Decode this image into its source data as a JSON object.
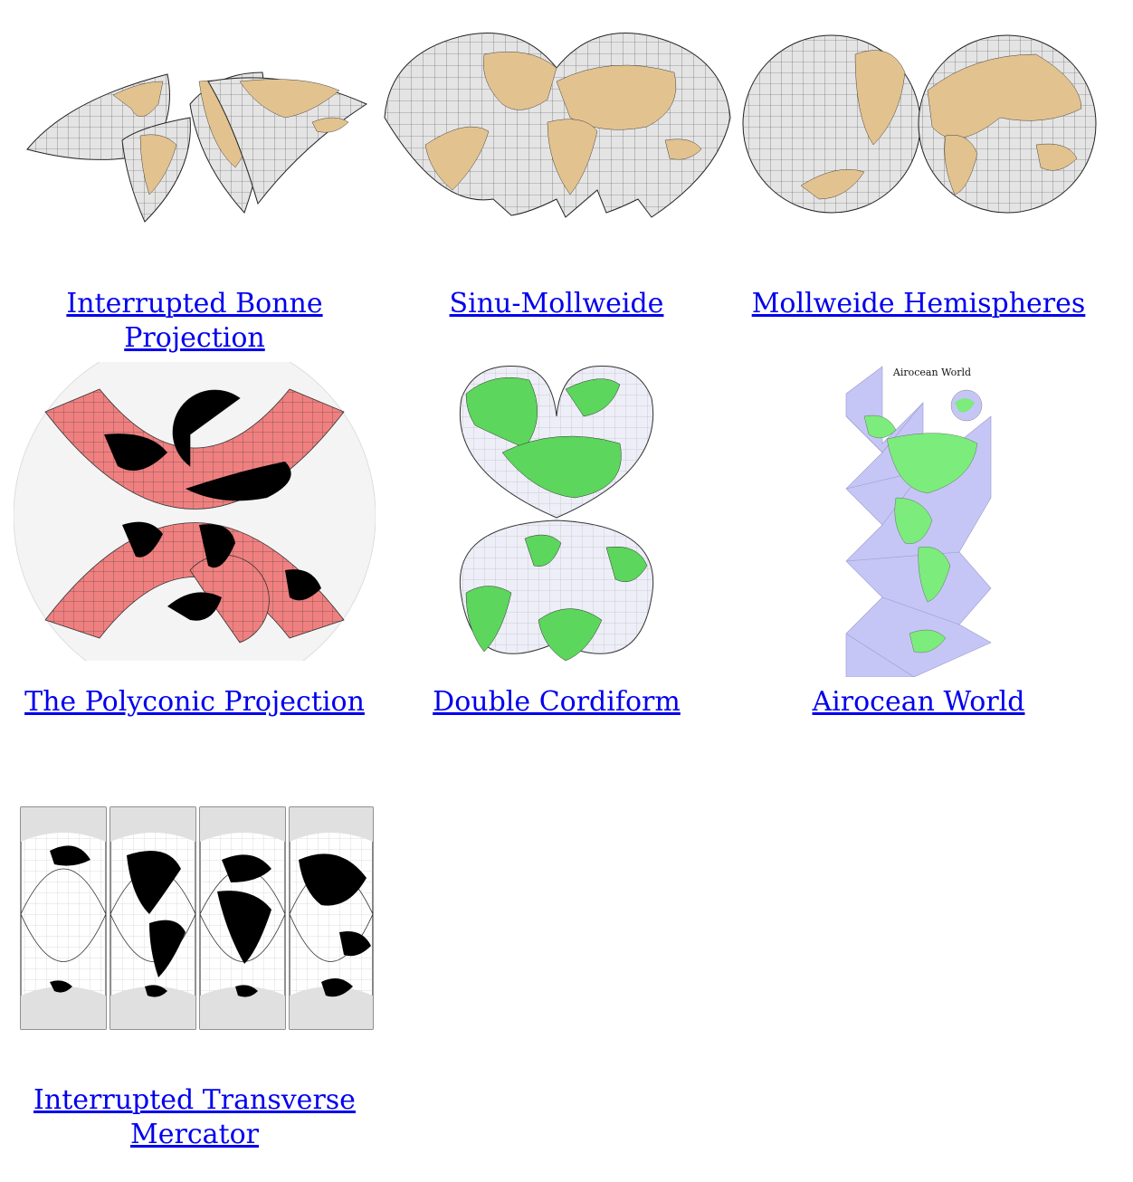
{
  "gallery": {
    "items": [
      {
        "label": "Interrupted Bonne Projection",
        "label_lines": [
          "Interrupted Bonne",
          "Projection"
        ]
      },
      {
        "label": "Sinu-Mollweide",
        "label_lines": [
          "Sinu-Mollweide"
        ]
      },
      {
        "label": "Mollweide Hemispheres",
        "label_lines": [
          "Mollweide Hemispheres"
        ]
      },
      {
        "label": "The Polyconic Projection",
        "label_lines": [
          "The Polyconic Projection"
        ]
      },
      {
        "label": "Double Cordiform",
        "label_lines": [
          "Double Cordiform"
        ]
      },
      {
        "label": "Airocean World",
        "label_lines": [
          "Airocean World"
        ]
      },
      {
        "label": "Interrupted Transverse Mercator",
        "label_lines": [
          "Interrupted Transverse",
          "Mercator"
        ]
      }
    ],
    "airocean_thumb_title": "Airocean World"
  },
  "colors": {
    "link": "#0000ee",
    "ocean_gray": "#e4e4e4",
    "land_tan": "#e2c28f",
    "poly_red": "#f08080",
    "cordiform_green": "#5cd65c",
    "cordiform_ocean": "#eeeef8",
    "airocean_blue": "#c6c6f6",
    "land_black": "#000000"
  }
}
